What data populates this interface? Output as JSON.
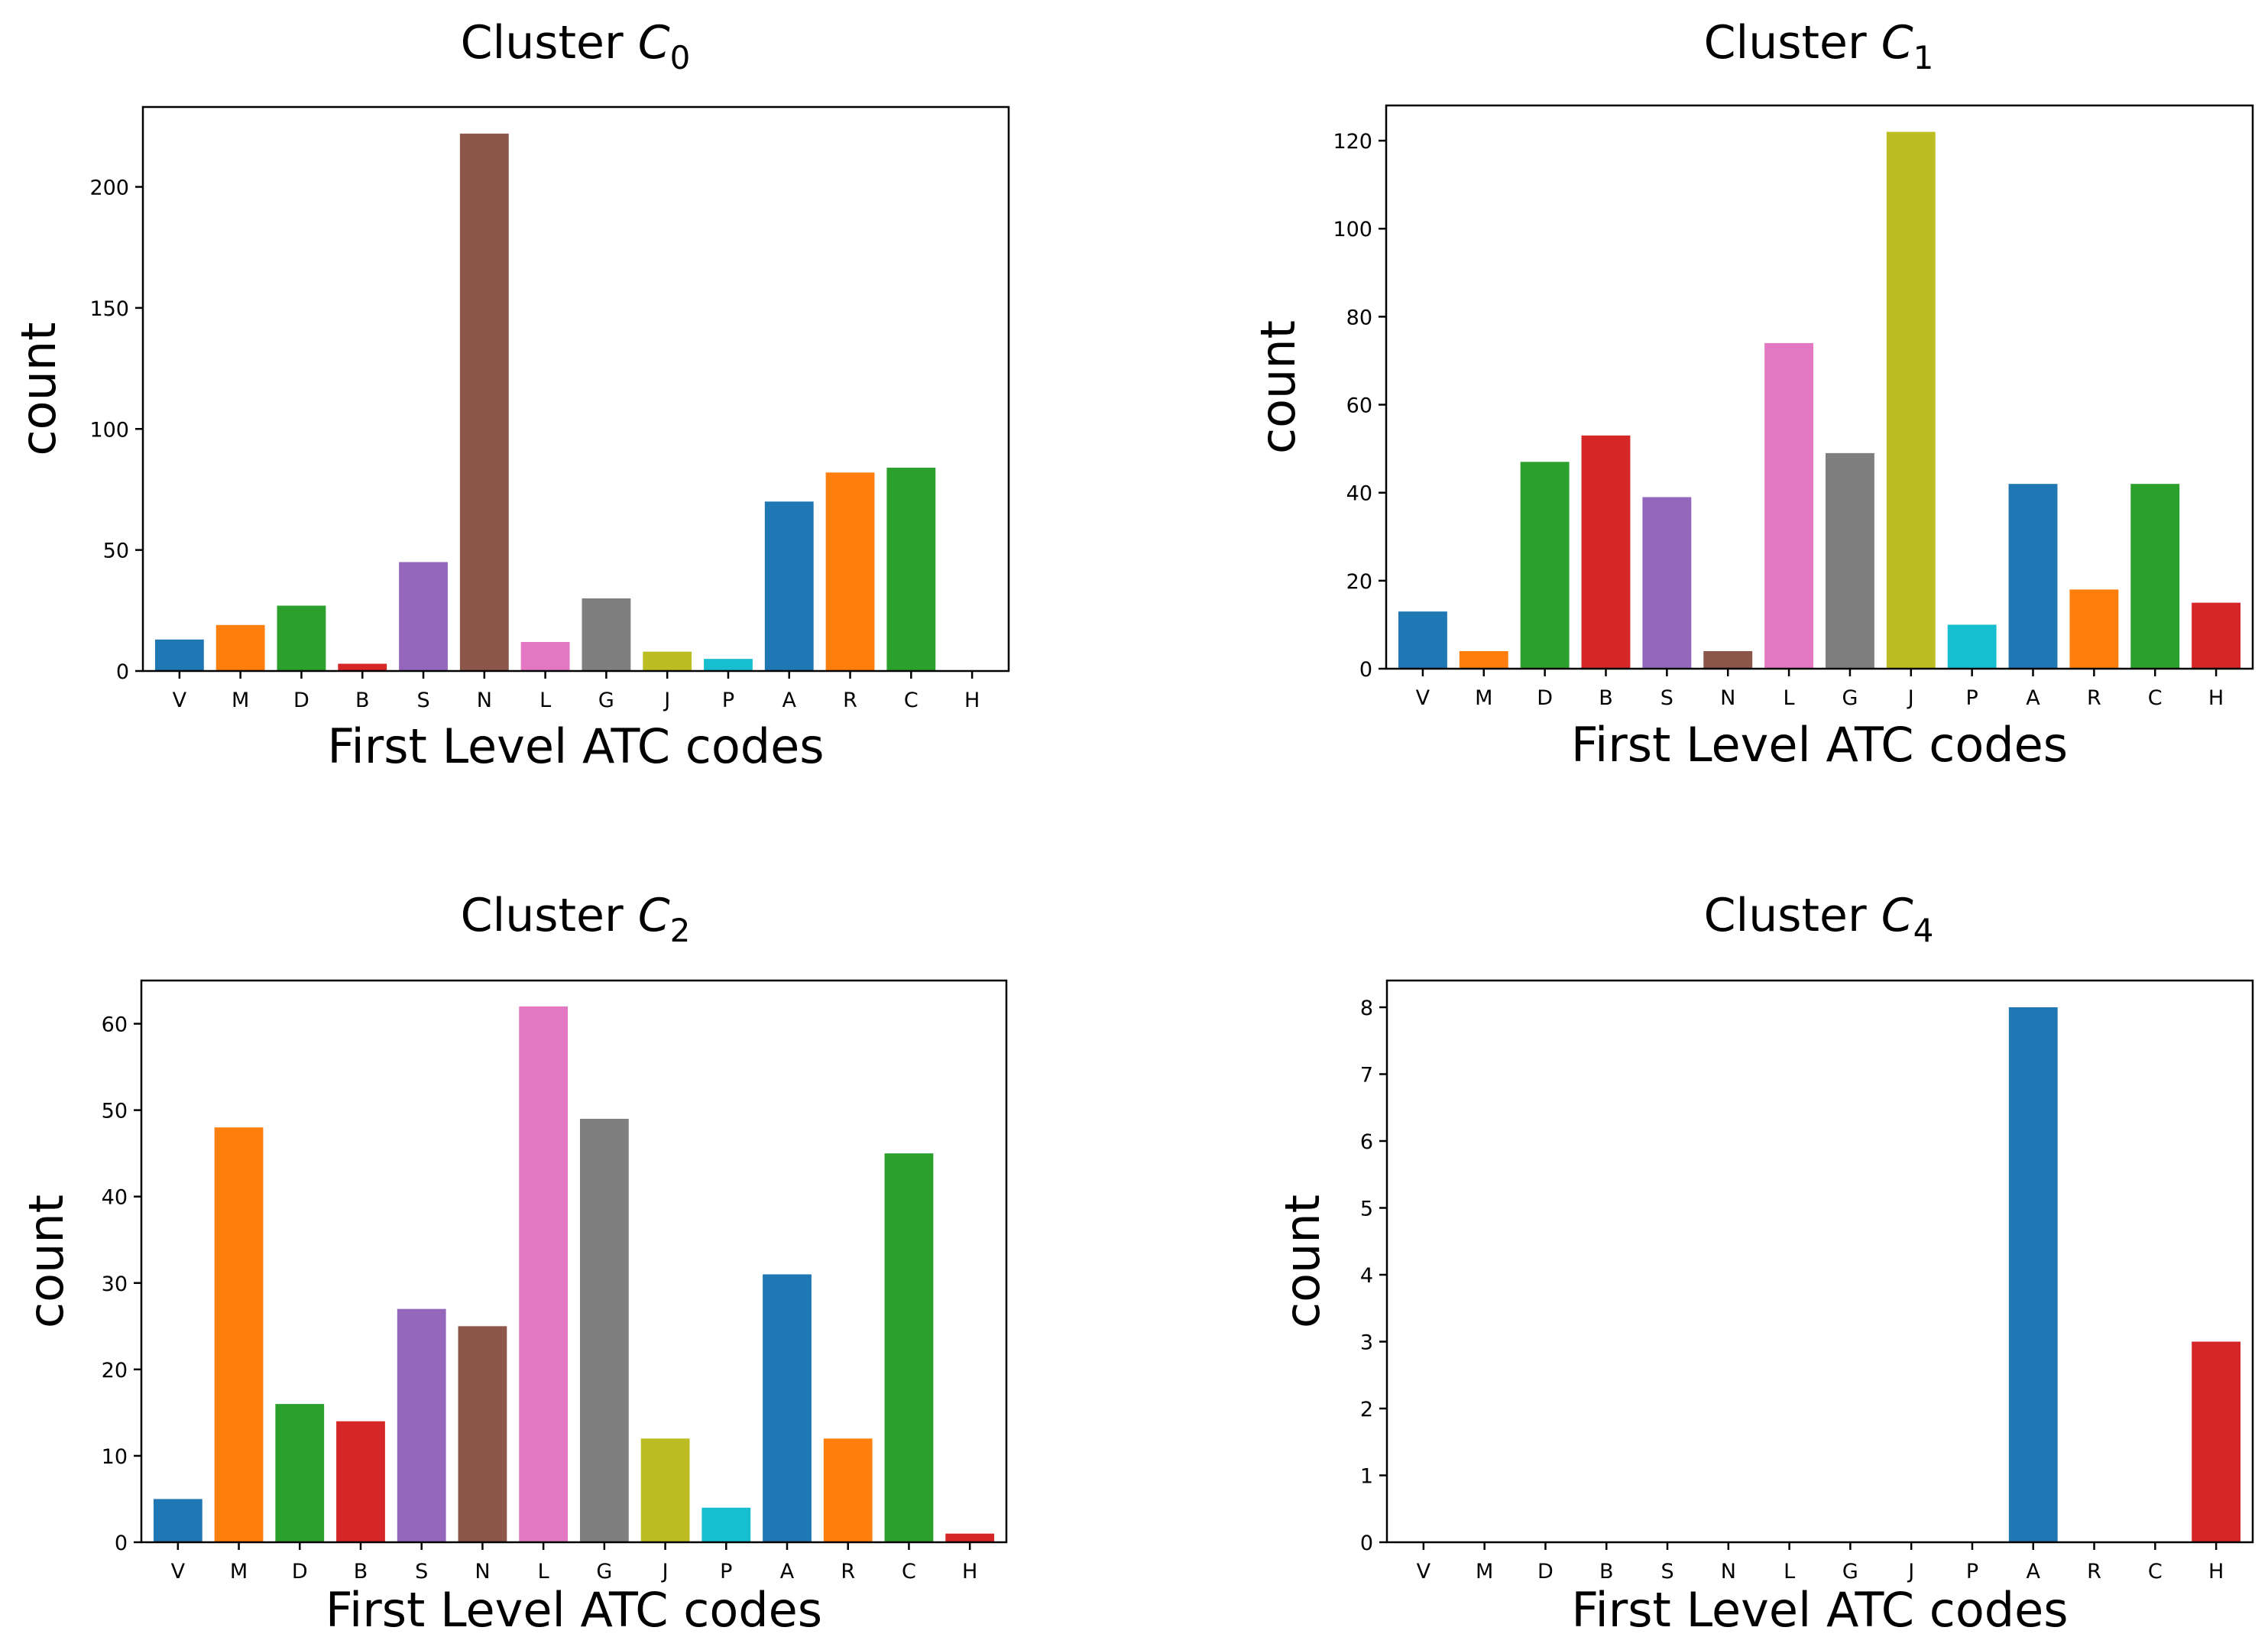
{
  "chart_data": [
    {
      "type": "bar",
      "title_prefix": "Cluster ",
      "title_var": "C",
      "title_sub": "0",
      "xlabel": "First Level ATC codes",
      "ylabel": "count",
      "categories": [
        "V",
        "M",
        "D",
        "B",
        "S",
        "N",
        "L",
        "G",
        "J",
        "P",
        "A",
        "R",
        "C",
        "H"
      ],
      "values": [
        13,
        19,
        27,
        3,
        45,
        222,
        12,
        30,
        8,
        5,
        70,
        82,
        84,
        0
      ],
      "ylim": [
        0,
        233
      ],
      "yticks": [
        0,
        50,
        100,
        150,
        200
      ],
      "colors": [
        "#1f77b4",
        "#ff7f0e",
        "#2ca02c",
        "#d62728",
        "#9467bd",
        "#8c564b",
        "#e377c2",
        "#7f7f7f",
        "#bcbd22",
        "#17becf",
        "#1f77b4",
        "#ff7f0e",
        "#2ca02c",
        "#d62728"
      ]
    },
    {
      "type": "bar",
      "title_prefix": "Cluster ",
      "title_var": "C",
      "title_sub": "1",
      "xlabel": "First Level ATC codes",
      "ylabel": "count",
      "categories": [
        "V",
        "M",
        "D",
        "B",
        "S",
        "N",
        "L",
        "G",
        "J",
        "P",
        "A",
        "R",
        "C",
        "H"
      ],
      "values": [
        13,
        4,
        47,
        53,
        39,
        4,
        74,
        49,
        122,
        10,
        42,
        18,
        42,
        15
      ],
      "ylim": [
        0,
        128
      ],
      "yticks": [
        0,
        20,
        40,
        60,
        80,
        100,
        120
      ],
      "colors": [
        "#1f77b4",
        "#ff7f0e",
        "#2ca02c",
        "#d62728",
        "#9467bd",
        "#8c564b",
        "#e377c2",
        "#7f7f7f",
        "#bcbd22",
        "#17becf",
        "#1f77b4",
        "#ff7f0e",
        "#2ca02c",
        "#d62728"
      ]
    },
    {
      "type": "bar",
      "title_prefix": "Cluster ",
      "title_var": "C",
      "title_sub": "2",
      "xlabel": "First Level ATC codes",
      "ylabel": "count",
      "categories": [
        "V",
        "M",
        "D",
        "B",
        "S",
        "N",
        "L",
        "G",
        "J",
        "P",
        "A",
        "R",
        "C",
        "H"
      ],
      "values": [
        5,
        48,
        16,
        14,
        27,
        25,
        62,
        49,
        12,
        4,
        31,
        12,
        45,
        1
      ],
      "ylim": [
        0,
        65
      ],
      "yticks": [
        0,
        10,
        20,
        30,
        40,
        50,
        60
      ],
      "colors": [
        "#1f77b4",
        "#ff7f0e",
        "#2ca02c",
        "#d62728",
        "#9467bd",
        "#8c564b",
        "#e377c2",
        "#7f7f7f",
        "#bcbd22",
        "#17becf",
        "#1f77b4",
        "#ff7f0e",
        "#2ca02c",
        "#d62728"
      ]
    },
    {
      "type": "bar",
      "title_prefix": "Cluster ",
      "title_var": "C",
      "title_sub": "4",
      "xlabel": "First Level ATC codes",
      "ylabel": "count",
      "categories": [
        "V",
        "M",
        "D",
        "B",
        "S",
        "N",
        "L",
        "G",
        "J",
        "P",
        "A",
        "R",
        "C",
        "H"
      ],
      "values": [
        0,
        0,
        0,
        0,
        0,
        0,
        0,
        0,
        0,
        0,
        8,
        0,
        0,
        3
      ],
      "ylim": [
        0,
        8.4
      ],
      "yticks": [
        0,
        1,
        2,
        3,
        4,
        5,
        6,
        7,
        8
      ],
      "colors": [
        "#1f77b4",
        "#ff7f0e",
        "#2ca02c",
        "#d62728",
        "#9467bd",
        "#8c564b",
        "#e377c2",
        "#7f7f7f",
        "#bcbd22",
        "#17becf",
        "#1f77b4",
        "#ff7f0e",
        "#2ca02c",
        "#d62728"
      ]
    }
  ]
}
